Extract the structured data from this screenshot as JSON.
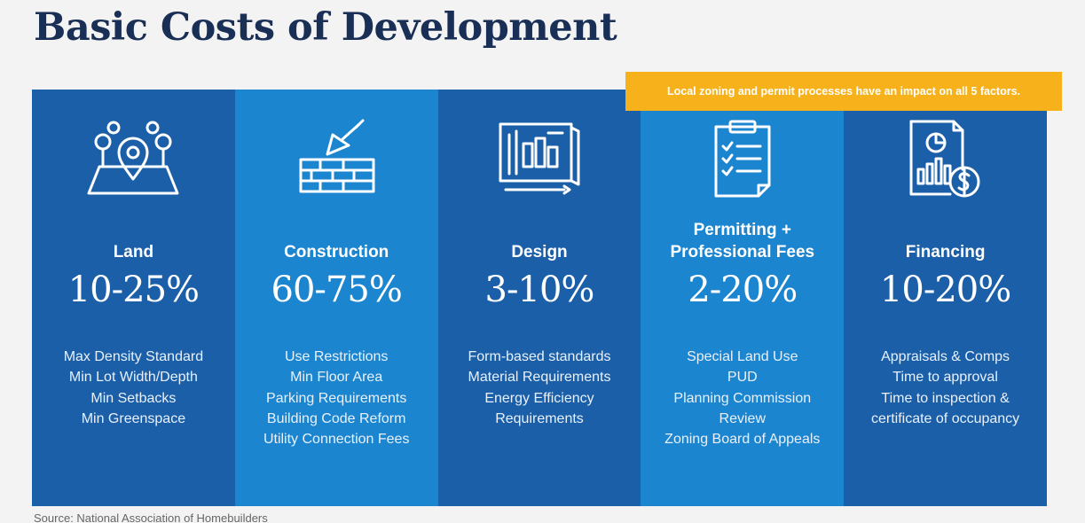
{
  "title": "Basic Costs of Development",
  "callout": "Local zoning and permit processes have an impact on all 5 factors.",
  "source": "Source: National Association of Homebuilders",
  "colors": {
    "dark_blue": "#1b5fa9",
    "light_blue": "#1c85cf",
    "callout": "#f7b21b",
    "title": "#1a2f55"
  },
  "columns": [
    {
      "icon": "land-map-pin-icon",
      "heading": "Land",
      "percent": "10-25%",
      "items": [
        "Max Density Standard",
        "Min Lot Width/Depth",
        "Min Setbacks",
        "Min Greenspace"
      ]
    },
    {
      "icon": "brick-trowel-icon",
      "heading": "Construction",
      "percent": "60-75%",
      "items": [
        "Use Restrictions",
        "Min Floor Area",
        "Parking Requirements",
        "Building Code Reform",
        "Utility Connection Fees"
      ]
    },
    {
      "icon": "blueprint-icon",
      "heading": "Design",
      "percent": "3-10%",
      "items": [
        "Form-based standards",
        "Material Requirements",
        "Energy Efficiency",
        "Requirements"
      ]
    },
    {
      "icon": "clipboard-checklist-icon",
      "heading": "Permitting + Professional Fees",
      "percent": "2-20%",
      "items": [
        "Special Land Use",
        "PUD",
        "Planning Commission",
        "Review",
        "Zoning Board of Appeals"
      ]
    },
    {
      "icon": "financial-report-dollar-icon",
      "heading": "Financing",
      "percent": "10-20%",
      "items": [
        "Appraisals & Comps",
        "Time to approval",
        "Time to inspection &",
        "certificate of occupancy"
      ]
    }
  ]
}
